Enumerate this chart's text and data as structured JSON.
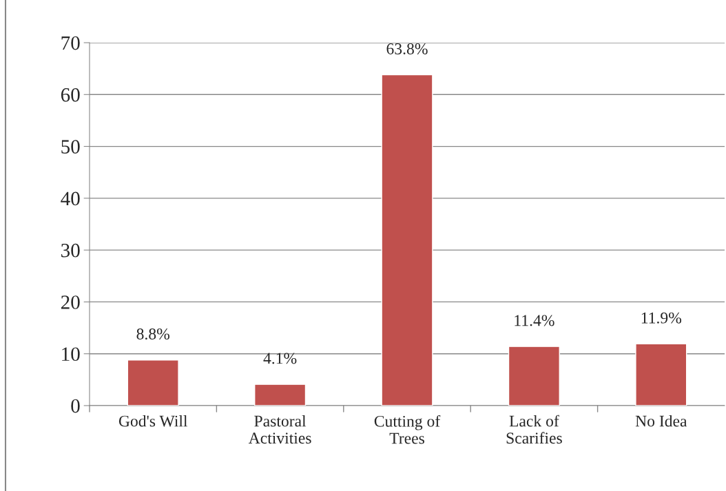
{
  "chart_data": {
    "type": "bar",
    "categories": [
      "God's Will",
      "Pastoral\nActivities",
      "Cutting of\nTrees",
      "Lack of\nScarifies",
      "No Idea"
    ],
    "values": [
      8.8,
      4.1,
      63.8,
      11.4,
      11.9
    ],
    "value_labels": [
      "8.8%",
      "4.1%",
      "63.8%",
      "11.4%",
      "11.9%"
    ],
    "color": "#c0504d",
    "ylim": [
      0,
      70
    ],
    "yticks": [
      0,
      10,
      20,
      30,
      40,
      50,
      60,
      70
    ],
    "grid": "y",
    "legend": false
  }
}
